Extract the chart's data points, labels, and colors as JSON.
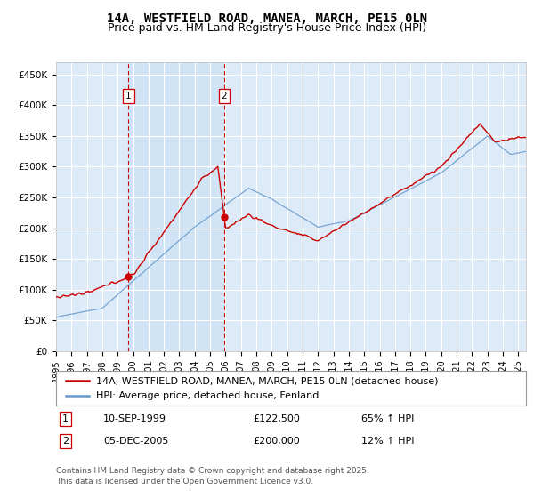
{
  "title": "14A, WESTFIELD ROAD, MANEA, MARCH, PE15 0LN",
  "subtitle": "Price paid vs. HM Land Registry's House Price Index (HPI)",
  "ylim": [
    0,
    470000
  ],
  "xlim_start": 1995,
  "xlim_end": 2025.5,
  "background_color": "#ffffff",
  "plot_bg_color": "#ddeaf7",
  "shaded_region_color": "#d0e4f5",
  "grid_color": "#ffffff",
  "legend_label_red": "14A, WESTFIELD ROAD, MANEA, MARCH, PE15 0LN (detached house)",
  "legend_label_blue": "HPI: Average price, detached house, Fenland",
  "red_color": "#cc0000",
  "blue_color": "#6699cc",
  "vline_color": "#cc0000",
  "t1_year": 1999.69,
  "t2_year": 2005.92,
  "t1_price": 122500,
  "t2_price": 200000,
  "t1_date": "10-SEP-1999",
  "t2_date": "05-DEC-2005",
  "t1_pct": "65% ↑ HPI",
  "t2_pct": "12% ↑ HPI",
  "footer": "Contains HM Land Registry data © Crown copyright and database right 2025.\nThis data is licensed under the Open Government Licence v3.0.",
  "title_fontsize": 10,
  "subtitle_fontsize": 9,
  "tick_fontsize": 7.5,
  "legend_fontsize": 8,
  "footer_fontsize": 6.5
}
